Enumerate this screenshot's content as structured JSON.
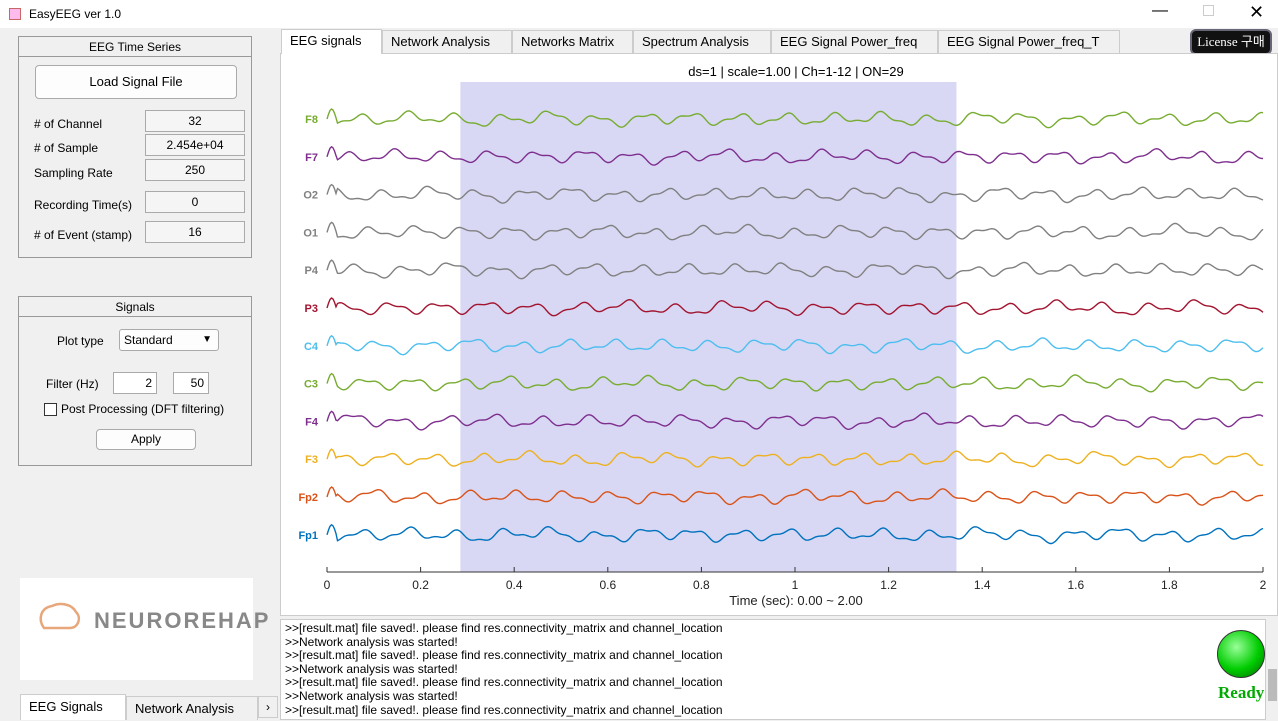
{
  "window": {
    "title": "EasyEEG ver 1.0"
  },
  "time_series": {
    "title": "EEG Time Series",
    "button": "Load Signal File",
    "rows": [
      {
        "label": "# of Channel",
        "value": 32
      },
      {
        "label": "# of Sample",
        "value": "2.454e+04"
      },
      {
        "label": "Sampling Rate",
        "value": 250
      },
      {
        "label": "Recording Time(s)",
        "value": 0
      },
      {
        "label": "# of Event (stamp)",
        "value": 16
      }
    ]
  },
  "signals": {
    "title": "Signals",
    "plot_type_label": "Plot type",
    "plot_type": "Standard",
    "filter_label": "Filter (Hz)",
    "filter": [
      2,
      50
    ],
    "post_processing": "Post Processing (DFT filtering)",
    "apply": "Apply"
  },
  "logo": "NEUROREHAP",
  "bottom_tabs": [
    "EEG Signals",
    "Network Analysis"
  ],
  "tabs": [
    "EEG signals",
    "Network Analysis",
    "Networks Matrix",
    "Spectrum Analysis",
    "EEG Signal Power_freq",
    "EEG Signal Power_freq_T"
  ],
  "license": "License 구매",
  "chart_data": {
    "type": "line",
    "title": "ds=1 | scale=1.00 | Ch=1-12 | ON=29",
    "xlabel": "Time (sec): 0.00 ~ 2.00",
    "xlim": [
      0,
      2
    ],
    "xticks": [
      0,
      0.2,
      0.4,
      0.6,
      0.8,
      1,
      1.2,
      1.4,
      1.6,
      1.8,
      2
    ],
    "highlight": [
      0.285,
      1.345
    ],
    "channels": [
      {
        "name": "F8",
        "color": "#77ac30"
      },
      {
        "name": "F7",
        "color": "#7e2f8e"
      },
      {
        "name": "O2",
        "color": "#808080"
      },
      {
        "name": "O1",
        "color": "#808080"
      },
      {
        "name": "P4",
        "color": "#808080"
      },
      {
        "name": "P3",
        "color": "#a2142f"
      },
      {
        "name": "C4",
        "color": "#4dbeee"
      },
      {
        "name": "C3",
        "color": "#77ac30"
      },
      {
        "name": "F4",
        "color": "#7e2f8e"
      },
      {
        "name": "F3",
        "color": "#edb120"
      },
      {
        "name": "Fp2",
        "color": "#d95319"
      },
      {
        "name": "Fp1",
        "color": "#0072bd"
      }
    ]
  },
  "log": [
    ">>[result.mat] file saved!. please find res.connectivity_matrix and channel_location",
    ">>Network analysis was started!",
    ">>[result.mat] file saved!. please find res.connectivity_matrix and channel_location",
    ">>Network analysis was started!",
    ">>[result.mat] file saved!. please find res.connectivity_matrix and channel_location",
    ">>Network analysis was started!",
    ">>[result.mat] file saved!. please find res.connectivity_matrix and channel_location"
  ],
  "status": "Ready"
}
